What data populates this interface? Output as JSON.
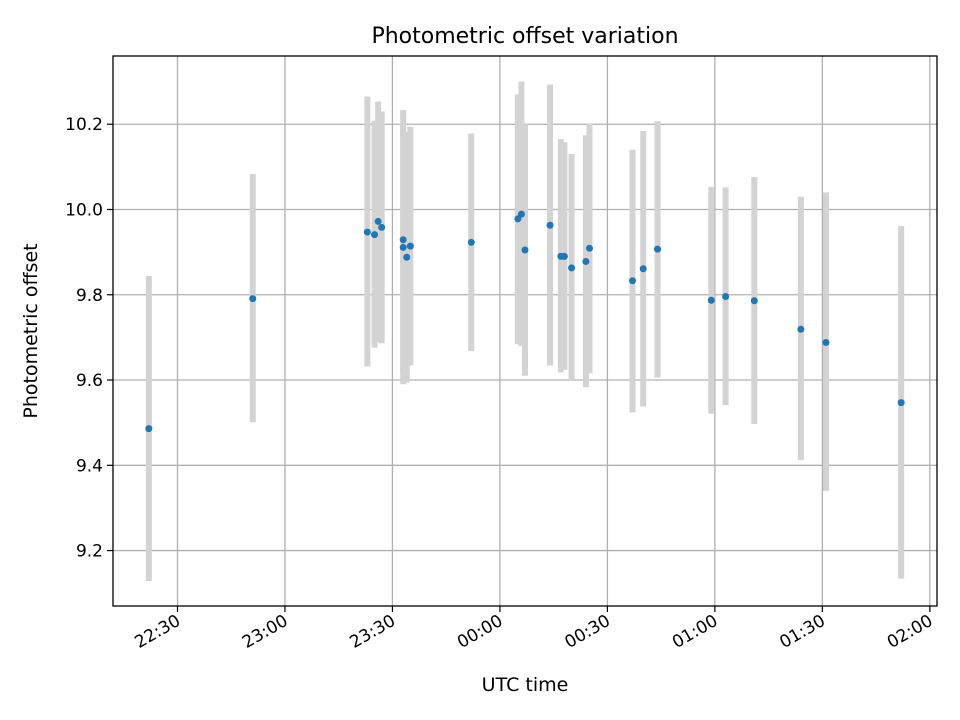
{
  "chart_data": {
    "type": "scatter",
    "title": "Photometric offset variation",
    "xlabel": "UTC time",
    "ylabel": "Photometric offset",
    "grid": true,
    "xlim": [
      "22:12",
      "02:02"
    ],
    "ylim": [
      9.07,
      10.36
    ],
    "x_ticks": [
      "22:30",
      "23:00",
      "23:30",
      "00:00",
      "00:30",
      "01:00",
      "01:30",
      "02:00"
    ],
    "y_ticks": [
      9.2,
      9.4,
      9.6,
      9.8,
      10.0,
      10.2
    ],
    "errorbar_color": "#d3d3d3",
    "point_color": "#1f77b4",
    "series": [
      {
        "points": [
          {
            "t": "22:22",
            "y": 9.486,
            "err_low": 9.129,
            "err_high": 9.844
          },
          {
            "t": "22:51",
            "y": 9.791,
            "err_low": 9.501,
            "err_high": 10.083
          },
          {
            "t": "23:23",
            "y": 9.947,
            "err_low": 9.632,
            "err_high": 10.265
          },
          {
            "t": "23:25",
            "y": 9.941,
            "err_low": 9.676,
            "err_high": 10.208
          },
          {
            "t": "23:26",
            "y": 9.972,
            "err_low": 9.688,
            "err_high": 10.253
          },
          {
            "t": "23:27",
            "y": 9.958,
            "err_low": 9.686,
            "err_high": 10.23
          },
          {
            "t": "23:33",
            "y": 9.911,
            "err_low": 9.59,
            "err_high": 10.233
          },
          {
            "t": "23:33",
            "y": 9.929,
            "err_low": 9.62,
            "err_high": 10.2
          },
          {
            "t": "23:34",
            "y": 9.888,
            "err_low": 9.594,
            "err_high": 10.182
          },
          {
            "t": "23:35",
            "y": 9.914,
            "err_low": 9.634,
            "err_high": 10.194
          },
          {
            "t": "23:52",
            "y": 9.923,
            "err_low": 9.668,
            "err_high": 10.178
          },
          {
            "t": "00:05",
            "y": 9.978,
            "err_low": 9.684,
            "err_high": 10.27
          },
          {
            "t": "00:06",
            "y": 9.989,
            "err_low": 9.68,
            "err_high": 10.3
          },
          {
            "t": "00:07",
            "y": 9.905,
            "err_low": 9.61,
            "err_high": 10.2
          },
          {
            "t": "00:14",
            "y": 9.963,
            "err_low": 9.634,
            "err_high": 10.293
          },
          {
            "t": "00:17",
            "y": 9.89,
            "err_low": 9.618,
            "err_high": 10.165
          },
          {
            "t": "00:18",
            "y": 9.89,
            "err_low": 9.624,
            "err_high": 10.158
          },
          {
            "t": "00:20",
            "y": 9.863,
            "err_low": 9.598,
            "err_high": 10.13
          },
          {
            "t": "00:24",
            "y": 9.878,
            "err_low": 9.583,
            "err_high": 10.174
          },
          {
            "t": "00:25",
            "y": 9.909,
            "err_low": 9.616,
            "err_high": 10.201
          },
          {
            "t": "00:37",
            "y": 9.833,
            "err_low": 9.524,
            "err_high": 10.14
          },
          {
            "t": "00:40",
            "y": 9.861,
            "err_low": 9.538,
            "err_high": 10.184
          },
          {
            "t": "00:44",
            "y": 9.907,
            "err_low": 9.606,
            "err_high": 10.207
          },
          {
            "t": "00:59",
            "y": 9.787,
            "err_low": 9.521,
            "err_high": 10.053
          },
          {
            "t": "01:03",
            "y": 9.796,
            "err_low": 9.541,
            "err_high": 10.052
          },
          {
            "t": "01:11",
            "y": 9.786,
            "err_low": 9.497,
            "err_high": 10.076
          },
          {
            "t": "01:24",
            "y": 9.719,
            "err_low": 9.412,
            "err_high": 10.03
          },
          {
            "t": "01:31",
            "y": 9.688,
            "err_low": 9.34,
            "err_high": 10.04
          },
          {
            "t": "01:52",
            "y": 9.547,
            "err_low": 9.134,
            "err_high": 9.961
          }
        ]
      }
    ]
  }
}
